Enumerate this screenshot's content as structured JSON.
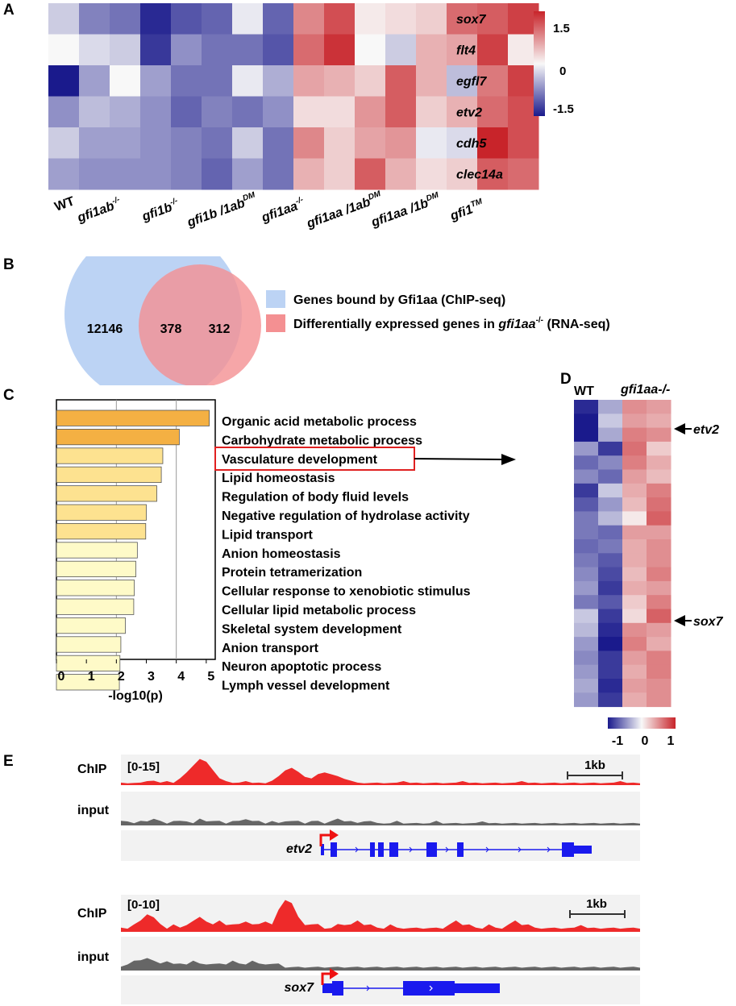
{
  "panels": {
    "a": "A",
    "b": "B",
    "c": "C",
    "d": "D",
    "e": "E"
  },
  "panel_a": {
    "genes": [
      "sox7",
      "flt4",
      "egfl7",
      "etv2",
      "cdh5",
      "clec14a"
    ],
    "groups": [
      {
        "base": "gfi1ab",
        "sup": "-/-"
      },
      {
        "base": "gfi1b",
        "sup": "-/-"
      },
      {
        "base": "gfi1b /1ab",
        "sup": "DM"
      },
      {
        "base": "gfi1aa",
        "sup": "-/-"
      },
      {
        "base": "gfi1aa /1ab",
        "sup": "DM"
      },
      {
        "base": "gfi1aa /1b",
        "sup": "DM"
      },
      {
        "base": "gfi1",
        "sup": "TM"
      }
    ],
    "wt_label": "WT",
    "colorbar": {
      "ticks": [
        "1.5",
        "0",
        "-1.5"
      ],
      "min": -1.5,
      "max": 1.5
    },
    "values": [
      [
        -0.3,
        -0.8,
        -0.9,
        -1.4,
        -1.1,
        -1.0,
        -0.1,
        -1.0,
        0.8,
        1.2,
        0.1,
        0.2,
        0.3,
        1.0,
        1.1,
        1.3
      ],
      [
        0.0,
        -0.2,
        -0.3,
        -1.3,
        -0.7,
        -0.9,
        -0.9,
        -1.1,
        1.0,
        1.4,
        0.0,
        -0.3,
        0.5,
        0.6,
        1.3,
        0.1
      ],
      [
        -1.6,
        -0.6,
        0.0,
        -0.6,
        -0.9,
        -0.9,
        -0.1,
        -0.5,
        0.6,
        0.5,
        0.3,
        1.1,
        0.5,
        -0.4,
        0.9,
        1.3
      ],
      [
        -0.7,
        -0.4,
        -0.5,
        -0.7,
        -1.0,
        -0.8,
        -0.9,
        -0.7,
        0.2,
        0.2,
        0.7,
        1.1,
        0.3,
        0.5,
        1.0,
        1.2
      ],
      [
        -0.3,
        -0.6,
        -0.6,
        -0.7,
        -0.8,
        -0.9,
        -0.3,
        -0.9,
        0.8,
        0.3,
        0.6,
        0.7,
        -0.1,
        -0.2,
        1.6,
        1.2
      ],
      [
        -0.6,
        -0.7,
        -0.7,
        -0.7,
        -0.8,
        -1.0,
        -0.6,
        -0.9,
        0.5,
        0.3,
        1.1,
        0.5,
        0.2,
        0.3,
        1.1,
        1.0
      ]
    ]
  },
  "panel_b": {
    "left_count": "12146",
    "overlap_count": "378",
    "right_count": "312",
    "legend_chip": "Genes bound by Gfi1aa (ChIP-seq)",
    "legend_rna_prefix": "Differentially expressed genes in ",
    "legend_rna_gene": "gfi1aa",
    "legend_rna_sup": "-/-",
    "legend_rna_suffix": " (RNA-seq)",
    "colors": {
      "chip": "#bcd3f4",
      "rna": "#f49092"
    }
  },
  "chart_data": {
    "type": "bar",
    "orientation": "horizontal",
    "xlabel": "-log10(p)",
    "xlim": [
      0,
      5.3
    ],
    "xticks": [
      "0",
      "1",
      "2",
      "3",
      "4",
      "5"
    ],
    "categories": [
      "Organic acid metabolic process",
      "Carbohydrate metabolic process",
      "Vasculature development",
      "Lipid homeostasis",
      "Regulation of body fluid levels",
      "Negative regulation of hydrolase activity",
      "Lipid transport",
      "Anion homeostasis",
      "Protein tetramerization",
      "Cellular response to xenobiotic stimulus",
      "Cellular lipid metabolic process",
      "Skeletal system development",
      "Anion transport",
      "Neuron apoptotic process",
      "Lymph vessel development"
    ],
    "values": [
      5.1,
      4.1,
      3.55,
      3.5,
      3.35,
      3.0,
      2.98,
      2.7,
      2.65,
      2.6,
      2.58,
      2.3,
      2.15,
      2.12,
      2.1
    ],
    "bar_colors": [
      "#f4b043",
      "#f4b043",
      "#fde290",
      "#fde290",
      "#fde290",
      "#fde290",
      "#fde290",
      "#fefac8",
      "#fefac8",
      "#fefac8",
      "#fefac8",
      "#fefac8",
      "#fefac8",
      "#fefac8",
      "#fefac8"
    ],
    "highlighted": "Vasculature development"
  },
  "panel_d": {
    "col_wt": "WT",
    "col_mut": "gfi1aa-/-",
    "arrow_etv2": "etv2",
    "arrow_sox7": "sox7",
    "colorbar": {
      "ticks": [
        "-1",
        "0",
        "1"
      ],
      "min": -1,
      "max": 1
    },
    "values": [
      [
        -1.3,
        -0.5,
        0.7,
        0.6
      ],
      [
        -1.4,
        -0.3,
        0.6,
        0.5
      ],
      [
        -1.4,
        -0.5,
        0.8,
        0.7
      ],
      [
        -0.6,
        -1.2,
        0.9,
        0.3
      ],
      [
        -0.9,
        -0.7,
        0.8,
        0.5
      ],
      [
        -0.7,
        -0.9,
        0.6,
        0.4
      ],
      [
        -1.2,
        -0.3,
        0.5,
        0.8
      ],
      [
        -1.0,
        -0.6,
        0.4,
        0.9
      ],
      [
        -0.8,
        -0.4,
        0.1,
        1.0
      ],
      [
        -0.8,
        -0.9,
        0.6,
        0.6
      ],
      [
        -0.9,
        -0.8,
        0.5,
        0.7
      ],
      [
        -0.8,
        -1.0,
        0.5,
        0.7
      ],
      [
        -0.7,
        -1.1,
        0.4,
        0.8
      ],
      [
        -0.6,
        -1.2,
        0.5,
        0.6
      ],
      [
        -0.8,
        -1.0,
        0.3,
        0.8
      ],
      [
        -0.3,
        -1.2,
        0.2,
        1.0
      ],
      [
        -0.4,
        -1.3,
        0.7,
        0.6
      ],
      [
        -0.6,
        -1.4,
        0.8,
        0.5
      ],
      [
        -0.7,
        -1.2,
        0.6,
        0.8
      ],
      [
        -0.6,
        -1.2,
        0.5,
        0.8
      ],
      [
        -0.5,
        -1.3,
        0.6,
        0.7
      ],
      [
        -0.6,
        -1.2,
        0.5,
        0.7
      ]
    ]
  },
  "panel_e": {
    "track1": {
      "chip_label": "ChIP",
      "range": "[0-15]",
      "input_label": "input",
      "gene": "etv2",
      "scale": "1kb",
      "chip_signal": [
        1,
        1,
        1,
        1,
        2,
        2,
        1,
        2,
        1,
        3,
        6,
        9,
        12,
        11,
        7,
        3,
        2,
        1,
        1,
        2,
        1,
        1,
        1,
        2,
        4,
        7,
        8,
        6,
        4,
        3,
        5,
        6,
        5,
        4,
        3,
        2,
        1,
        1,
        1,
        1,
        1,
        1,
        1,
        2,
        1,
        1,
        1,
        1,
        1,
        1,
        1,
        1,
        2,
        1,
        1,
        1,
        1,
        1,
        1,
        1,
        1,
        2,
        1,
        1,
        1,
        1,
        1,
        1,
        1,
        1,
        1,
        1,
        1,
        1,
        1,
        1,
        2,
        1,
        1,
        1
      ],
      "input_signal": [
        2,
        2,
        1,
        2,
        2,
        3,
        2,
        1,
        2,
        2,
        2,
        1,
        3,
        2,
        2,
        2,
        1,
        2,
        2,
        3,
        2,
        2,
        1,
        2,
        1,
        2,
        2,
        2,
        1,
        2,
        2,
        1,
        2,
        3,
        2,
        2,
        1,
        2,
        2,
        1,
        1,
        1,
        2,
        1,
        1,
        1,
        1,
        1,
        2,
        1,
        1,
        1,
        1,
        1,
        1,
        2,
        1,
        1,
        1,
        1,
        1,
        1,
        1,
        1,
        1,
        1,
        1,
        1,
        1,
        1,
        1,
        1,
        1,
        1,
        1,
        1,
        1,
        1,
        1,
        1
      ]
    },
    "track2": {
      "chip_label": "ChIP",
      "range": "[0-10]",
      "input_label": "input",
      "gene": "sox7",
      "scale": "1kb",
      "chip_signal": [
        1,
        1,
        2,
        3,
        5,
        4,
        2,
        1,
        2,
        1,
        2,
        3,
        4,
        3,
        2,
        3,
        2,
        2,
        2,
        3,
        2,
        2,
        3,
        2,
        6,
        9,
        8,
        4,
        2,
        2,
        2,
        1,
        1,
        2,
        2,
        2,
        3,
        2,
        2,
        1,
        1,
        2,
        1,
        1,
        1,
        1,
        1,
        1,
        1,
        1,
        2,
        3,
        2,
        2,
        1,
        1,
        2,
        1,
        1,
        2,
        3,
        2,
        2,
        1,
        1,
        1,
        1,
        1,
        1,
        1,
        2,
        1,
        1,
        1,
        1,
        1,
        1,
        1,
        1,
        1
      ],
      "input_signal": [
        1,
        2,
        3,
        3,
        4,
        3,
        2,
        3,
        2,
        2,
        2,
        3,
        2,
        2,
        2,
        2,
        2,
        3,
        2,
        2,
        3,
        2,
        2,
        2,
        2,
        1,
        1,
        1,
        1,
        1,
        1,
        1,
        1,
        1,
        1,
        1,
        1,
        1,
        1,
        1,
        1,
        1,
        1,
        1,
        1,
        1,
        1,
        1,
        1,
        1,
        1,
        1,
        1,
        1,
        1,
        1,
        1,
        1,
        1,
        1,
        1,
        1,
        1,
        1,
        1,
        1,
        1,
        1,
        1,
        1,
        1,
        1,
        1,
        1,
        1,
        1,
        1,
        1,
        1,
        1
      ]
    }
  }
}
